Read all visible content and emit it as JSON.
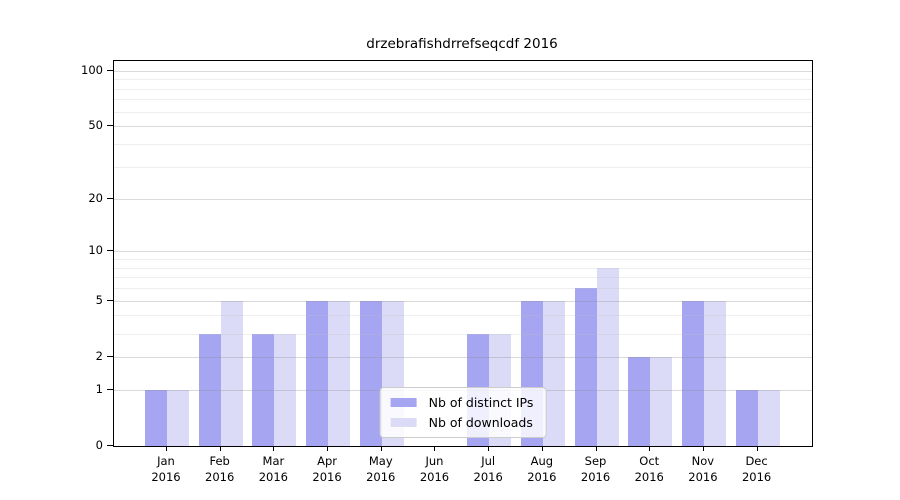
{
  "title": "drzebrafishdrrefseqcdf 2016",
  "colors": {
    "distinct_ips": "#a5a5f2",
    "downloads": "#dbdbf8",
    "axis": "#000000"
  },
  "legend": {
    "items": [
      {
        "label": "Nb of distinct IPs",
        "color": "#a5a5f2"
      },
      {
        "label": "Nb of downloads",
        "color": "#dbdbf8"
      }
    ]
  },
  "chart_data": {
    "type": "bar",
    "title": "drzebrafishdrrefseqcdf 2016",
    "categories": [
      "Jan 2016",
      "Feb 2016",
      "Mar 2016",
      "Apr 2016",
      "May 2016",
      "Jun 2016",
      "Jul 2016",
      "Aug 2016",
      "Sep 2016",
      "Oct 2016",
      "Nov 2016",
      "Dec 2016"
    ],
    "series": [
      {
        "name": "Nb of distinct IPs",
        "color": "#a5a5f2",
        "values": [
          1,
          3,
          3,
          5,
          5,
          0,
          3,
          5,
          6,
          2,
          5,
          1
        ]
      },
      {
        "name": "Nb of downloads",
        "color": "#dbdbf8",
        "values": [
          1,
          5,
          3,
          5,
          5,
          0,
          3,
          5,
          8,
          2,
          5,
          1
        ]
      }
    ],
    "xlabel": "",
    "ylabel": "",
    "yscale": "log1p",
    "ylim": [
      0,
      113
    ],
    "yticks": [
      0,
      1,
      2,
      5,
      10,
      20,
      50,
      100
    ],
    "minor_gridlines": [
      3,
      4,
      6,
      7,
      8,
      9,
      30,
      40,
      60,
      70,
      80,
      90
    ],
    "grid": true,
    "legend_position": "lower center"
  }
}
